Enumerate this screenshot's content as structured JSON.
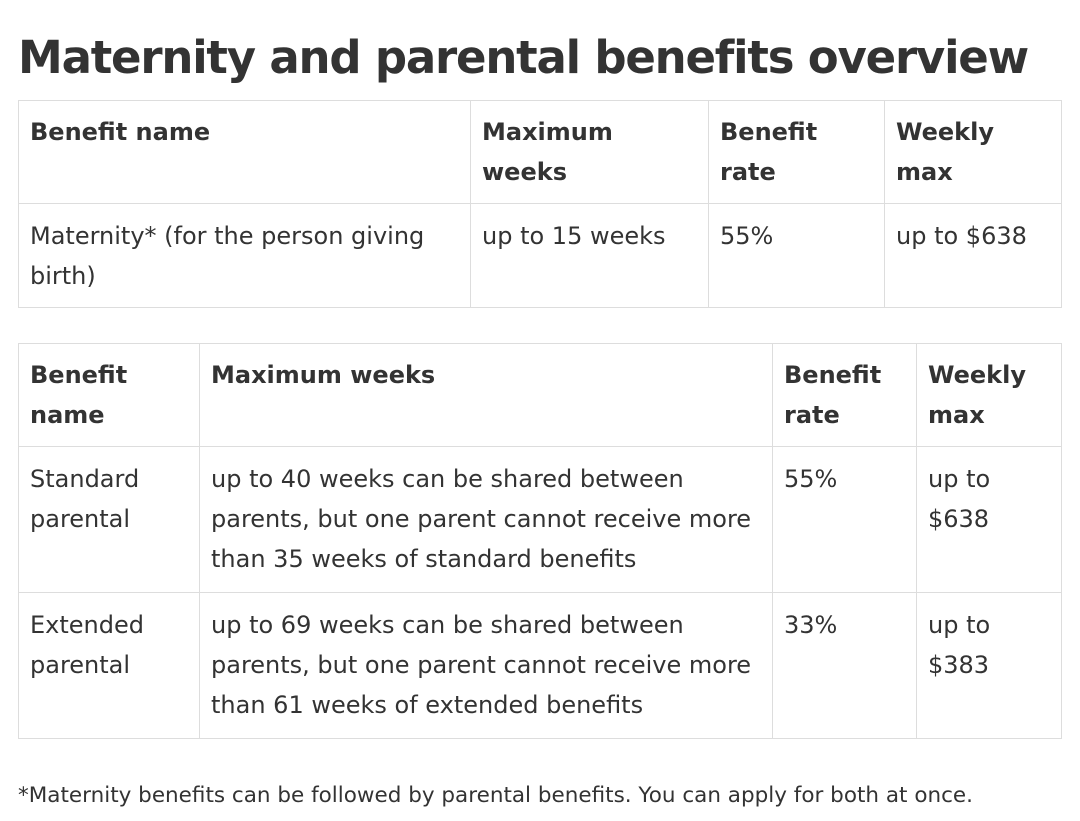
{
  "title": "Maternity and parental benefits overview",
  "maternity_table": {
    "headers": {
      "benefit_name": "Benefit name",
      "max_weeks": "Maximum weeks",
      "benefit_rate": "Benefit rate",
      "weekly_max": "Weekly max"
    },
    "rows": [
      {
        "benefit_name": "Maternity* (for the person giving birth)",
        "max_weeks": "up to 15 weeks",
        "benefit_rate": "55%",
        "weekly_max": "up to $638"
      }
    ]
  },
  "parental_table": {
    "headers": {
      "benefit_name": "Benefit name",
      "max_weeks": "Maximum weeks",
      "benefit_rate": "Benefit rate",
      "weekly_max": "Weekly max"
    },
    "rows": [
      {
        "benefit_name": "Standard parental",
        "max_weeks": "up to 40 weeks can be shared between parents, but one parent cannot receive more than 35 weeks of standard benefits",
        "benefit_rate": "55%",
        "weekly_max": "up to $638"
      },
      {
        "benefit_name": "Extended parental",
        "max_weeks": "up to 69 weeks can be shared between parents, but one parent cannot receive more than 61 weeks of extended benefits",
        "benefit_rate": "33%",
        "weekly_max": "up to $383"
      }
    ]
  },
  "footnote": "*Maternity benefits can be followed by parental benefits. You can apply for both at once."
}
